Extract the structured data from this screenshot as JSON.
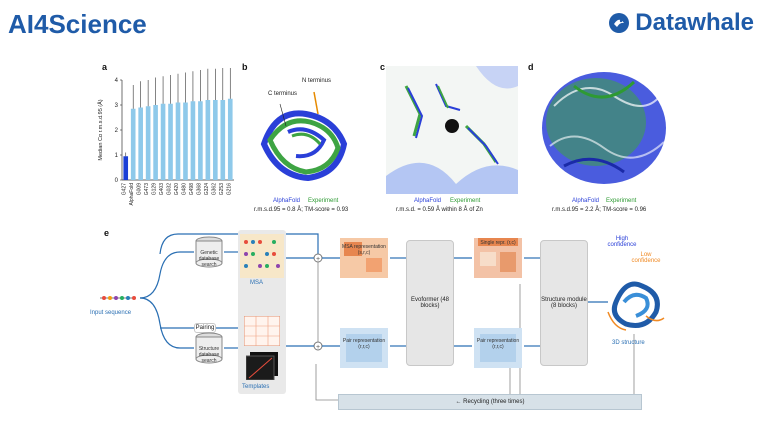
{
  "header": {
    "title": "AI4Science",
    "logo_text": "Datawhale",
    "logo_icon": "datawhale-logo-icon",
    "accent": "#1f5ba8"
  },
  "panel_letters": {
    "a": "a",
    "b": "b",
    "c": "c",
    "d": "d",
    "e": "e"
  },
  "panel_b": {
    "n_terminus": "N terminus",
    "c_terminus": "C terminus",
    "legend_af": "AlphaFold",
    "legend_exp": "Experiment",
    "caption": "r.m.s.d.95 = 0.8 Å; TM-score = 0.93"
  },
  "panel_c": {
    "legend_af": "AlphaFold",
    "legend_exp": "Experiment",
    "caption": "r.m.s.d. = 0.59 Å within 8 Å of Zn"
  },
  "panel_d": {
    "legend_af": "AlphaFold",
    "legend_exp": "Experiment",
    "caption": "r.m.s.d.95 = 2.2 Å; TM-score = 0.96"
  },
  "panel_e": {
    "input_sequence": "Input sequence",
    "genetic_db": "Genetic database search",
    "structure_db": "Structure database search",
    "pairing": "Pairing",
    "msa": "MSA",
    "templates": "Templates",
    "msa_rep": "MSA representation (s,r,c)",
    "pair_rep": "Pair representation (r,r,c)",
    "evoformer": "Evoformer (48 blocks)",
    "single_rep": "Single repr. (r,c)",
    "pair_rep2": "Pair representation (r,r,c)",
    "structure_module": "Structure module (8 blocks)",
    "high_conf": "High confidence",
    "low_conf": "Low confidence",
    "structure_3d": "3D structure",
    "recycling": "← Recycling (three times)"
  },
  "chart_data": {
    "type": "bar",
    "ylabel": "Median Cα r.m.s.d.95 (Å)",
    "ylim": [
      0,
      4
    ],
    "yticks": [
      "0",
      "1",
      "2",
      "3",
      "4"
    ],
    "categories": [
      "G427",
      "AlphaFold",
      "G009",
      "G473",
      "G129",
      "G403",
      "G032",
      "G420",
      "G480",
      "G498",
      "G368",
      "G324",
      "G362",
      "G253",
      "G216"
    ],
    "values": [
      0.95,
      2.85,
      2.9,
      2.95,
      3.0,
      3.05,
      3.05,
      3.1,
      3.1,
      3.15,
      3.15,
      3.2,
      3.2,
      3.2,
      3.25
    ],
    "error_upper": [
      0.15,
      0.95,
      1.05,
      1.05,
      1.1,
      1.1,
      1.15,
      1.15,
      1.2,
      1.2,
      1.25,
      1.25,
      1.25,
      1.3,
      1.3
    ],
    "colors": {
      "highlight": "#1a3fd6",
      "others": "#8ec9ea"
    }
  }
}
